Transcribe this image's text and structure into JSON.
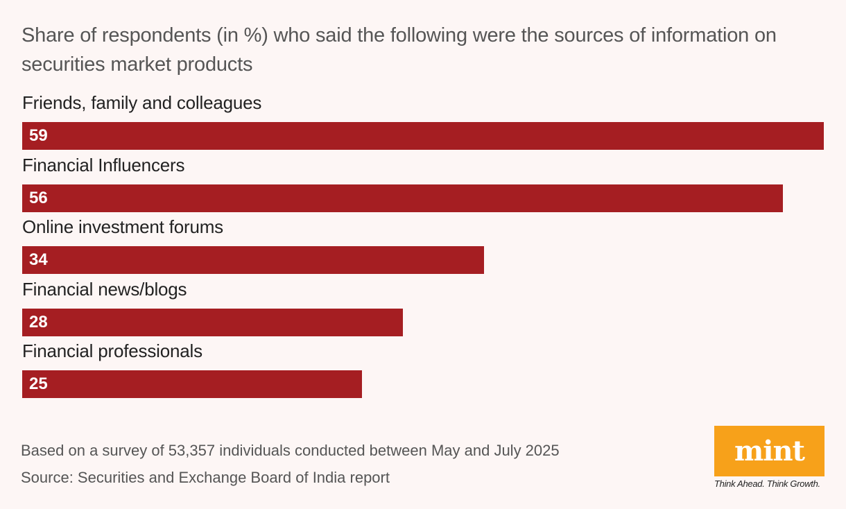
{
  "chart_data": {
    "type": "bar",
    "orientation": "horizontal",
    "title": "Share of respondents (in %) who said the following were the sources of information on securities market products",
    "categories": [
      "Friends, family and colleagues",
      "Financial Influencers",
      "Online investment forums",
      "Financial news/blogs",
      "Financial professionals"
    ],
    "values": [
      59,
      56,
      34,
      28,
      25
    ],
    "xlim": [
      0,
      59
    ],
    "grid": false,
    "bar_color": "#a51e22"
  },
  "footer": {
    "note": "Based on a survey of 53,357 individuals conducted between May and July 2025",
    "source": "Source: Securities and Exchange Board of India report"
  },
  "logo": {
    "text": "mint",
    "tagline": "Think Ahead. Think Growth.",
    "color": "#f7a11a"
  }
}
